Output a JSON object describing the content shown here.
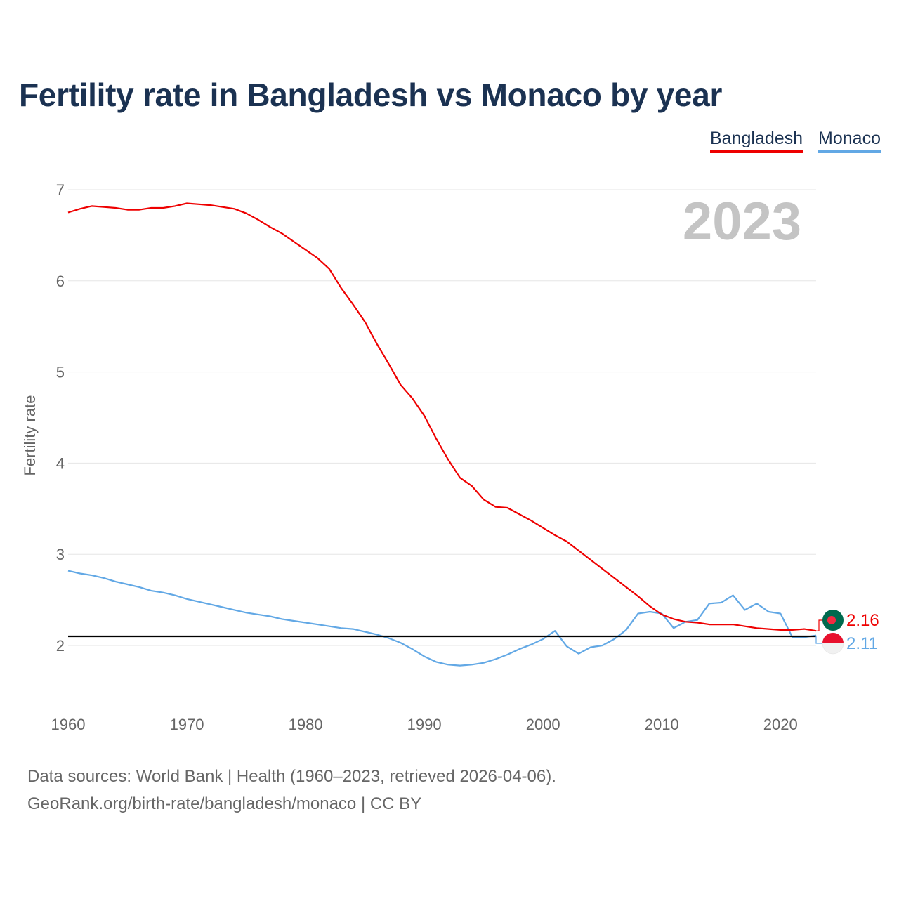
{
  "title": "Fertility rate in Bangladesh vs Monaco by year",
  "legend": [
    {
      "label": "Bangladesh",
      "color": "#ee0000"
    },
    {
      "label": "Monaco",
      "color": "#62a8e5"
    }
  ],
  "source": {
    "line1": "Data sources: World Bank | Health (1960–2023, retrieved 2026-04-06).",
    "line2": "GeoRank.org/birth-rate/bangladesh/monaco | CC BY"
  },
  "chart_data": {
    "type": "line",
    "title": "Fertility rate in Bangladesh vs Monaco by year",
    "xlabel": "",
    "ylabel": "Fertility rate",
    "xlim": [
      1960,
      2023
    ],
    "ylim": [
      1.35,
      7.1
    ],
    "xticks": [
      1960,
      1970,
      1980,
      1990,
      2000,
      2010,
      2020
    ],
    "yticks": [
      2,
      3,
      4,
      5,
      6,
      7
    ],
    "grid": true,
    "year_label": "2023",
    "reference_line": {
      "value": 2.1,
      "color": "#000000"
    },
    "x": [
      1960,
      1961,
      1962,
      1963,
      1964,
      1965,
      1966,
      1967,
      1968,
      1969,
      1970,
      1971,
      1972,
      1973,
      1974,
      1975,
      1976,
      1977,
      1978,
      1979,
      1980,
      1981,
      1982,
      1983,
      1984,
      1985,
      1986,
      1987,
      1988,
      1989,
      1990,
      1991,
      1992,
      1993,
      1994,
      1995,
      1996,
      1997,
      1998,
      1999,
      2000,
      2001,
      2002,
      2003,
      2004,
      2005,
      2006,
      2007,
      2008,
      2009,
      2010,
      2011,
      2012,
      2013,
      2014,
      2015,
      2016,
      2017,
      2018,
      2019,
      2020,
      2021,
      2022,
      2023
    ],
    "series": [
      {
        "name": "Bangladesh",
        "color": "#ee0000",
        "end_label": "2.16",
        "values": [
          6.75,
          6.79,
          6.82,
          6.81,
          6.8,
          6.78,
          6.78,
          6.8,
          6.8,
          6.82,
          6.85,
          6.84,
          6.83,
          6.81,
          6.79,
          6.74,
          6.67,
          6.59,
          6.52,
          6.43,
          6.34,
          6.25,
          6.13,
          5.92,
          5.74,
          5.55,
          5.31,
          5.09,
          4.86,
          4.71,
          4.52,
          4.27,
          4.04,
          3.84,
          3.75,
          3.6,
          3.52,
          3.51,
          3.44,
          3.37,
          3.29,
          3.21,
          3.14,
          3.04,
          2.94,
          2.84,
          2.74,
          2.64,
          2.54,
          2.43,
          2.34,
          2.29,
          2.26,
          2.25,
          2.23,
          2.23,
          2.23,
          2.21,
          2.19,
          2.18,
          2.17,
          2.17,
          2.18,
          2.16
        ]
      },
      {
        "name": "Monaco",
        "color": "#62a8e5",
        "end_label": "2.11",
        "values": [
          2.82,
          2.79,
          2.77,
          2.74,
          2.7,
          2.67,
          2.64,
          2.6,
          2.58,
          2.55,
          2.51,
          2.48,
          2.45,
          2.42,
          2.39,
          2.36,
          2.34,
          2.32,
          2.29,
          2.27,
          2.25,
          2.23,
          2.21,
          2.19,
          2.18,
          2.15,
          2.12,
          2.08,
          2.03,
          1.96,
          1.88,
          1.82,
          1.79,
          1.78,
          1.79,
          1.81,
          1.85,
          1.9,
          1.96,
          2.01,
          2.07,
          2.16,
          1.99,
          1.91,
          1.98,
          2.0,
          2.07,
          2.17,
          2.35,
          2.37,
          2.35,
          2.19,
          2.26,
          2.28,
          2.46,
          2.47,
          2.55,
          2.39,
          2.46,
          2.37,
          2.35,
          2.09,
          2.09,
          2.11
        ]
      }
    ]
  }
}
